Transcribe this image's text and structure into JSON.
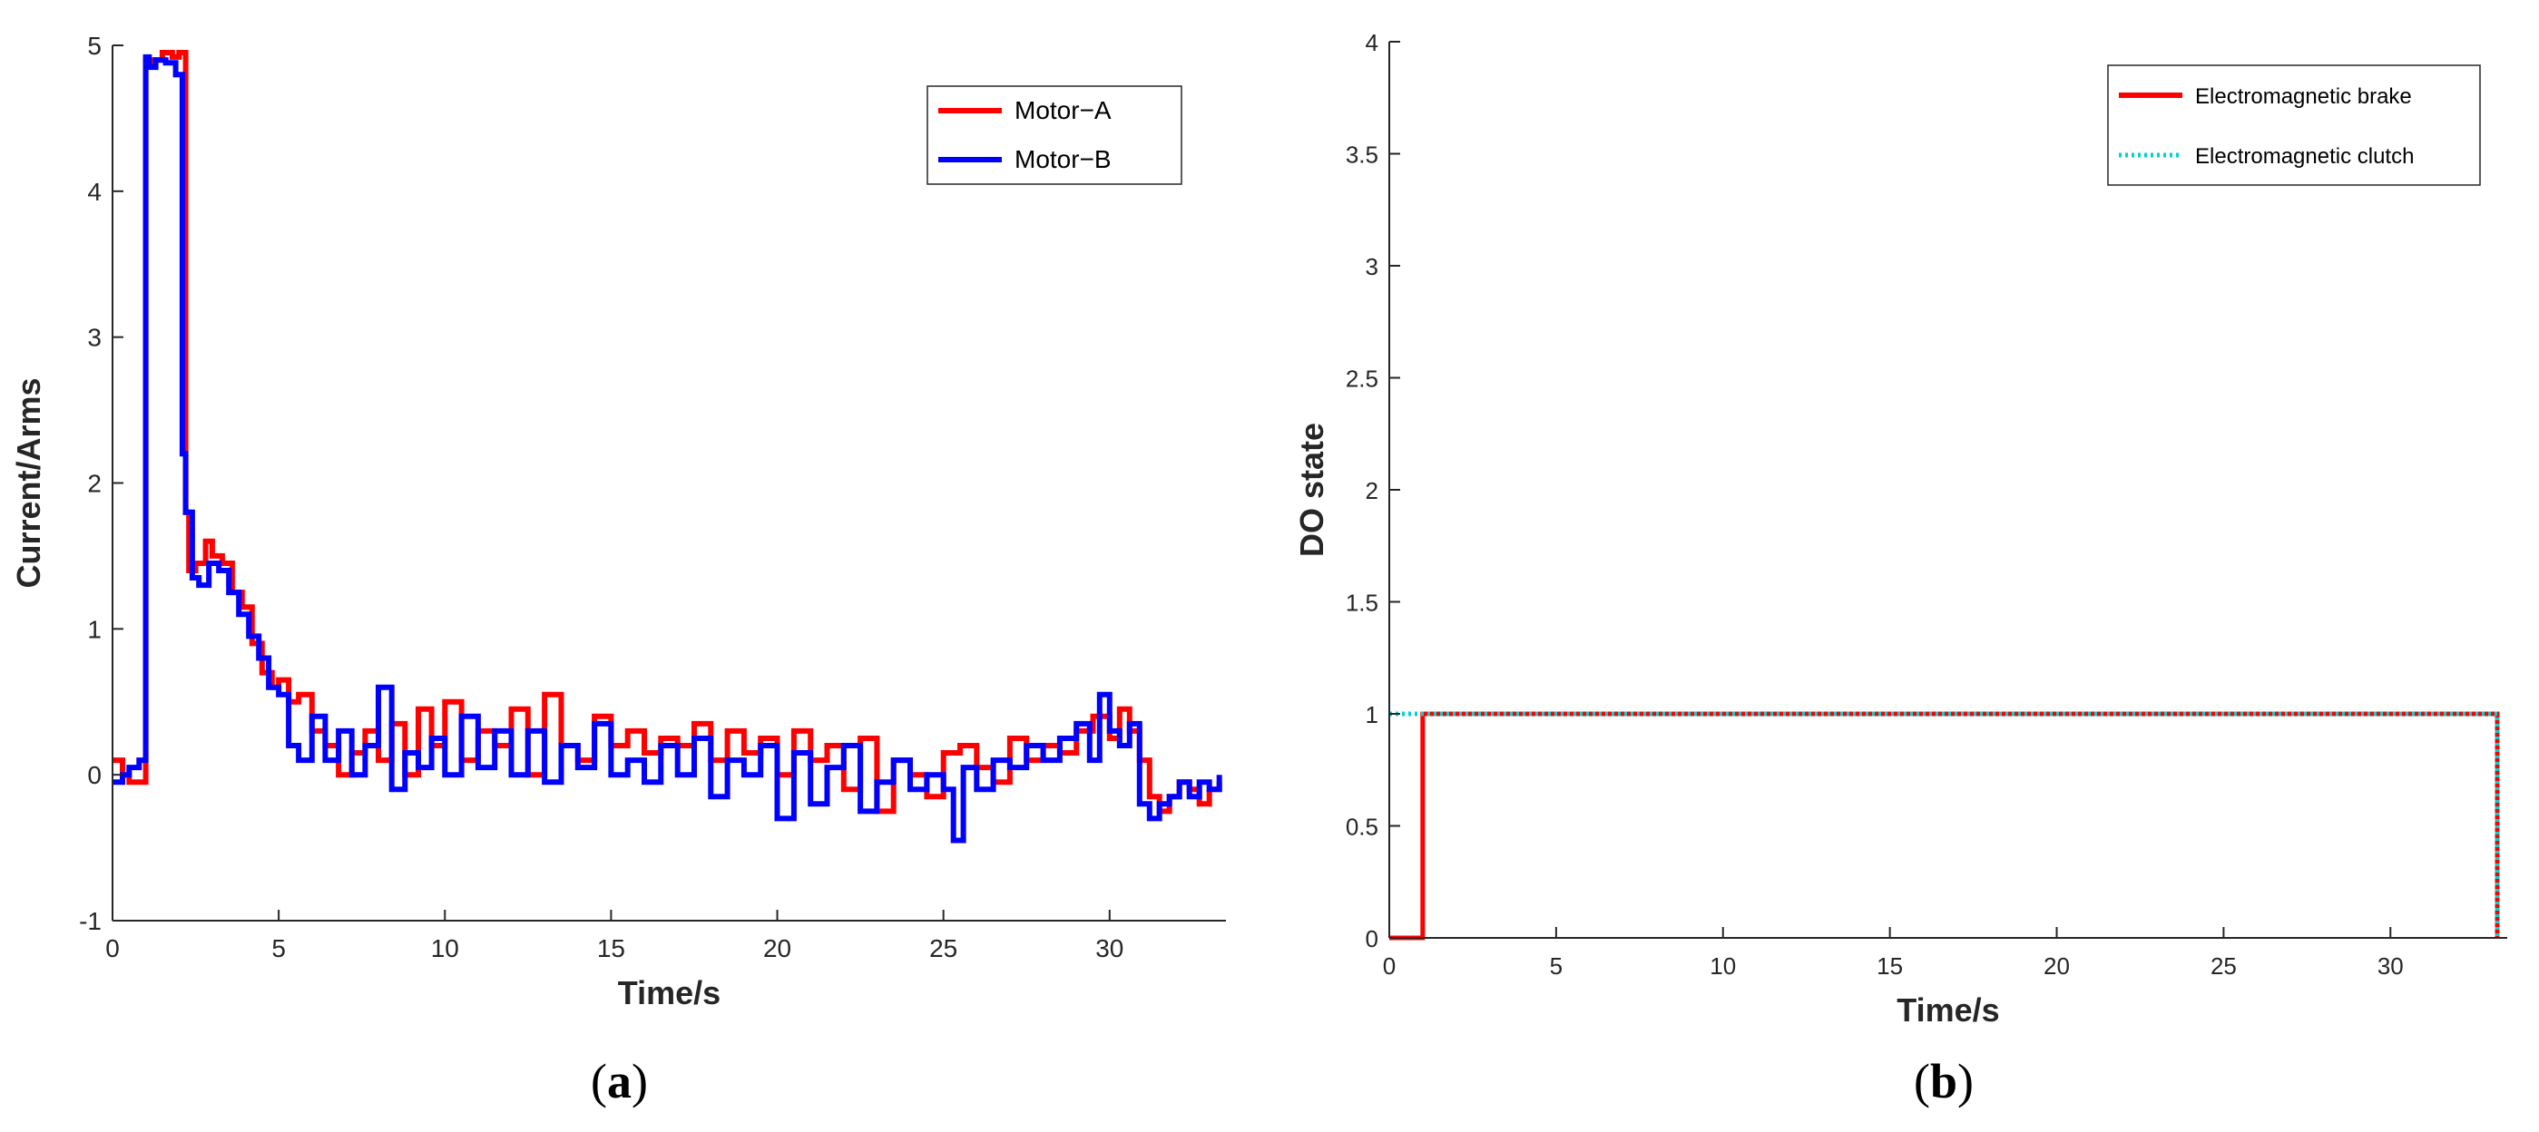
{
  "chart_data": [
    {
      "type": "line",
      "panel": "(a)",
      "caption": "(a)",
      "xlabel": "Time/s",
      "ylabel": "Current/Arms",
      "xlim": [
        0,
        33.5
      ],
      "ylim": [
        -1,
        5
      ],
      "xticks": [
        "0",
        "5",
        "10",
        "15",
        "20",
        "25",
        "30"
      ],
      "yticks": [
        "-1",
        "0",
        "1",
        "2",
        "3",
        "4",
        "5"
      ],
      "grid": false,
      "legend_position": "top-right",
      "series": [
        {
          "name": "Motor−A",
          "color": "#ff0000",
          "x": [
            0,
            0.3,
            0.5,
            0.8,
            1.0,
            1.05,
            1.2,
            1.5,
            1.8,
            2.0,
            2.2,
            2.3,
            2.5,
            2.8,
            3.0,
            3.3,
            3.6,
            3.9,
            4.2,
            4.5,
            4.8,
            5.0,
            5.3,
            5.6,
            6.0,
            6.4,
            6.8,
            7.2,
            7.6,
            8.0,
            8.4,
            8.8,
            9.2,
            9.6,
            10.0,
            10.5,
            11.0,
            11.5,
            12.0,
            12.5,
            13.0,
            13.5,
            14.0,
            14.5,
            15.0,
            15.5,
            16.0,
            16.5,
            17.0,
            17.5,
            18.0,
            18.5,
            19.0,
            19.5,
            20.0,
            20.5,
            21.0,
            21.5,
            22.0,
            22.5,
            23.0,
            23.5,
            24.0,
            24.5,
            25.0,
            25.5,
            26.0,
            26.5,
            27.0,
            27.5,
            28.0,
            28.5,
            29.0,
            29.5,
            30.0,
            30.3,
            30.6,
            30.9,
            31.2,
            31.5,
            31.8,
            32.1,
            32.4,
            32.7,
            33.0,
            33.3
          ],
          "y": [
            0.1,
            0.0,
            -0.05,
            -0.05,
            4.9,
            4.88,
            4.9,
            4.95,
            4.92,
            4.95,
            1.8,
            1.4,
            1.45,
            1.6,
            1.5,
            1.45,
            1.25,
            1.15,
            0.9,
            0.7,
            0.6,
            0.65,
            0.5,
            0.55,
            0.3,
            0.2,
            0.0,
            0.15,
            0.3,
            0.1,
            0.35,
            0.0,
            0.45,
            0.2,
            0.5,
            0.1,
            0.3,
            0.2,
            0.45,
            0.0,
            0.55,
            0.2,
            0.1,
            0.4,
            0.2,
            0.3,
            0.15,
            0.25,
            0.2,
            0.35,
            0.1,
            0.3,
            0.15,
            0.25,
            0.0,
            0.3,
            0.1,
            0.2,
            -0.1,
            0.25,
            -0.25,
            0.1,
            0.0,
            -0.15,
            0.15,
            0.2,
            0.05,
            -0.05,
            0.25,
            0.1,
            0.2,
            0.15,
            0.3,
            0.4,
            0.25,
            0.45,
            0.3,
            0.1,
            -0.15,
            -0.25,
            -0.15,
            -0.05,
            -0.1,
            -0.2,
            -0.1,
            -0.05
          ]
        },
        {
          "name": "Motor−B",
          "color": "#0000ff",
          "x": [
            0,
            0.3,
            0.5,
            0.8,
            1.0,
            1.1,
            1.3,
            1.6,
            1.9,
            2.1,
            2.2,
            2.4,
            2.6,
            2.9,
            3.2,
            3.5,
            3.8,
            4.1,
            4.4,
            4.7,
            5.0,
            5.3,
            5.6,
            6.0,
            6.4,
            6.8,
            7.2,
            7.6,
            8.0,
            8.4,
            8.8,
            9.2,
            9.6,
            10.0,
            10.5,
            11.0,
            11.5,
            12.0,
            12.5,
            13.0,
            13.5,
            14.0,
            14.5,
            15.0,
            15.5,
            16.0,
            16.5,
            17.0,
            17.5,
            18.0,
            18.5,
            19.0,
            19.5,
            20.0,
            20.5,
            21.0,
            21.5,
            22.0,
            22.5,
            23.0,
            23.5,
            24.0,
            24.5,
            25.0,
            25.3,
            25.6,
            26.0,
            26.5,
            27.0,
            27.5,
            28.0,
            28.5,
            29.0,
            29.4,
            29.7,
            30.0,
            30.3,
            30.6,
            30.9,
            31.2,
            31.5,
            31.8,
            32.1,
            32.4,
            32.7,
            33.0,
            33.3
          ],
          "y": [
            -0.05,
            0.0,
            0.05,
            0.1,
            4.92,
            4.85,
            4.9,
            4.88,
            4.8,
            2.2,
            1.8,
            1.35,
            1.3,
            1.45,
            1.4,
            1.25,
            1.1,
            0.95,
            0.8,
            0.6,
            0.55,
            0.2,
            0.1,
            0.4,
            0.1,
            0.3,
            0.0,
            0.2,
            0.6,
            -0.1,
            0.15,
            0.05,
            0.25,
            0.0,
            0.4,
            0.05,
            0.3,
            0.0,
            0.3,
            -0.05,
            0.2,
            0.05,
            0.35,
            0.0,
            0.1,
            -0.05,
            0.2,
            0.0,
            0.25,
            -0.15,
            0.1,
            0.0,
            0.2,
            -0.3,
            0.15,
            -0.2,
            0.05,
            0.2,
            -0.25,
            -0.05,
            0.1,
            -0.1,
            0.0,
            -0.1,
            -0.45,
            0.05,
            -0.1,
            0.1,
            0.05,
            0.2,
            0.1,
            0.25,
            0.35,
            0.1,
            0.55,
            0.3,
            0.2,
            0.35,
            -0.2,
            -0.3,
            -0.2,
            -0.15,
            -0.05,
            -0.15,
            -0.05,
            -0.1,
            0.0
          ]
        }
      ]
    },
    {
      "type": "line",
      "panel": "(b)",
      "caption": "(b)",
      "xlabel": "Time/s",
      "ylabel": "DO state",
      "xlim": [
        0,
        33.5
      ],
      "ylim": [
        0,
        4
      ],
      "xticks": [
        "0",
        "5",
        "10",
        "15",
        "20",
        "25",
        "30"
      ],
      "yticks": [
        "0",
        "0.5",
        "1",
        "1.5",
        "2",
        "2.5",
        "3",
        "3.5",
        "4"
      ],
      "grid": false,
      "legend_position": "top-right",
      "series": [
        {
          "name": "Electromagnetic brake",
          "color": "#ff0000",
          "style": "solid",
          "x": [
            0,
            1.0,
            1.0,
            33.2,
            33.2
          ],
          "y": [
            0,
            0,
            1,
            1,
            0
          ]
        },
        {
          "name": "Electromagnetic clutch",
          "color": "#00d2d2",
          "style": "dotted",
          "x": [
            0,
            33.2,
            33.2
          ],
          "y": [
            1,
            1,
            0
          ]
        }
      ]
    }
  ]
}
